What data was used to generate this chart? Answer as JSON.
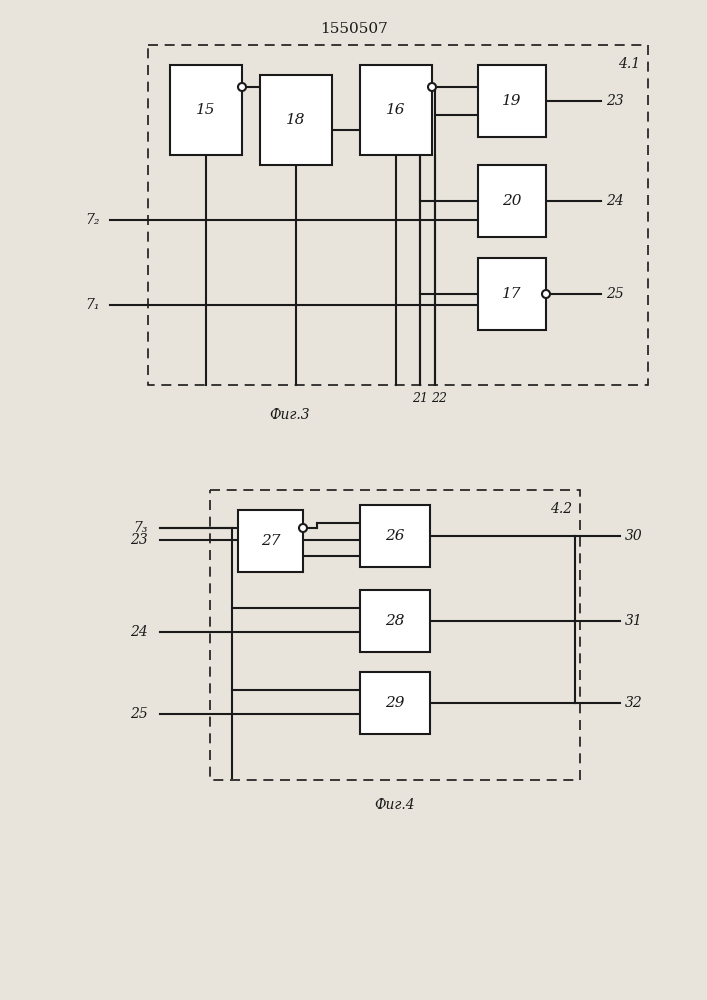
{
  "title": "1550507",
  "fig1_label": "Фиг.3",
  "fig2_label": "Фиг.4",
  "fig1_tag": "4.1",
  "fig2_tag": "4.2",
  "bg_color": "#e8e4dc",
  "line_color": "#1a1a1a",
  "box_fill": "#ffffff"
}
